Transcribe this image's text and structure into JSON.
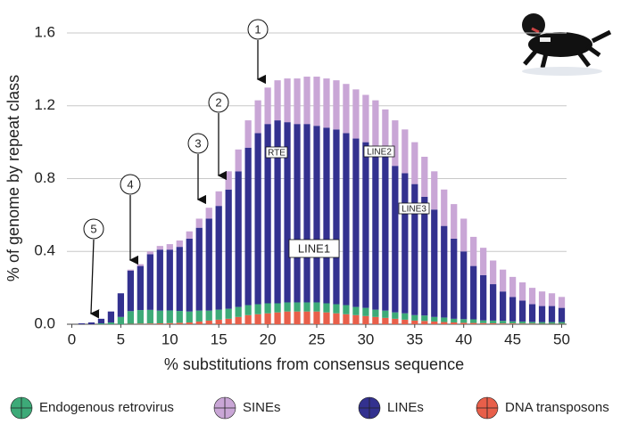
{
  "chart_data": {
    "type": "stacked_bar",
    "x_label": "% substitutions from consensus sequence",
    "y_label": "% of genome by repeat class",
    "x": [
      1,
      2,
      3,
      4,
      5,
      6,
      7,
      8,
      9,
      10,
      11,
      12,
      13,
      14,
      15,
      16,
      17,
      18,
      19,
      20,
      21,
      22,
      23,
      24,
      25,
      26,
      27,
      28,
      29,
      30,
      31,
      32,
      33,
      34,
      35,
      36,
      37,
      38,
      39,
      40,
      41,
      42,
      43,
      44,
      45,
      46,
      47,
      48,
      49,
      50
    ],
    "series": [
      {
        "name": "Endogenous retrovirus",
        "color": "#3daa78",
        "values": [
          0,
          0,
          0.005,
          0.01,
          0.04,
          0.07,
          0.075,
          0.075,
          0.07,
          0.07,
          0.065,
          0.06,
          0.06,
          0.055,
          0.055,
          0.055,
          0.055,
          0.055,
          0.055,
          0.055,
          0.05,
          0.05,
          0.05,
          0.05,
          0.05,
          0.05,
          0.05,
          0.05,
          0.045,
          0.045,
          0.04,
          0.04,
          0.035,
          0.035,
          0.03,
          0.03,
          0.025,
          0.025,
          0.02,
          0.02,
          0.02,
          0.015,
          0.015,
          0.015,
          0.012,
          0.012,
          0.01,
          0.01,
          0.01,
          0.01
        ]
      },
      {
        "name": "SINEs",
        "color": "#c9a6d6",
        "values": [
          0,
          0,
          0,
          0,
          0,
          0.005,
          0.01,
          0.015,
          0.02,
          0.03,
          0.035,
          0.04,
          0.05,
          0.06,
          0.08,
          0.1,
          0.12,
          0.15,
          0.18,
          0.2,
          0.22,
          0.24,
          0.25,
          0.26,
          0.27,
          0.27,
          0.27,
          0.27,
          0.27,
          0.26,
          0.26,
          0.25,
          0.25,
          0.24,
          0.23,
          0.22,
          0.21,
          0.2,
          0.19,
          0.18,
          0.16,
          0.15,
          0.13,
          0.12,
          0.11,
          0.1,
          0.09,
          0.08,
          0.07,
          0.06
        ]
      },
      {
        "name": "LINEs",
        "color": "#33318f",
        "values": [
          0.005,
          0.01,
          0.025,
          0.06,
          0.13,
          0.223,
          0.242,
          0.306,
          0.335,
          0.334,
          0.352,
          0.4,
          0.455,
          0.505,
          0.57,
          0.655,
          0.745,
          0.865,
          0.94,
          0.985,
          1.005,
          0.99,
          0.98,
          0.98,
          0.97,
          0.965,
          0.96,
          0.945,
          0.925,
          0.91,
          0.89,
          0.855,
          0.805,
          0.77,
          0.72,
          0.652,
          0.59,
          0.503,
          0.44,
          0.372,
          0.293,
          0.249,
          0.2,
          0.161,
          0.134,
          0.115,
          0.097,
          0.088,
          0.088,
          0.078
        ]
      },
      {
        "name": "DNA transposons",
        "color": "#e85f4a",
        "values": [
          0,
          0,
          0,
          0,
          0,
          0.002,
          0.003,
          0.004,
          0.005,
          0.006,
          0.008,
          0.01,
          0.015,
          0.02,
          0.025,
          0.03,
          0.04,
          0.05,
          0.055,
          0.06,
          0.065,
          0.07,
          0.07,
          0.07,
          0.07,
          0.065,
          0.06,
          0.055,
          0.05,
          0.045,
          0.04,
          0.035,
          0.03,
          0.025,
          0.02,
          0.018,
          0.015,
          0.012,
          0.01,
          0.008,
          0.007,
          0.006,
          0.005,
          0.004,
          0.004,
          0.003,
          0.003,
          0.002,
          0.002,
          0.002
        ]
      }
    ],
    "xlim": [
      -0.5,
      50.5
    ],
    "xticks": [
      0,
      5,
      10,
      15,
      20,
      25,
      30,
      35,
      40,
      45,
      50
    ],
    "ylim": [
      0,
      1.6
    ],
    "yticks": [
      {
        "value": 0,
        "label": "0.0"
      },
      0.4,
      0.8,
      1.2,
      1.6
    ],
    "grid": true,
    "annotations": [
      "1",
      "2",
      "3",
      "4",
      "5",
      "RTE",
      "LINE2",
      "LINE3",
      "LINE1"
    ]
  }
}
